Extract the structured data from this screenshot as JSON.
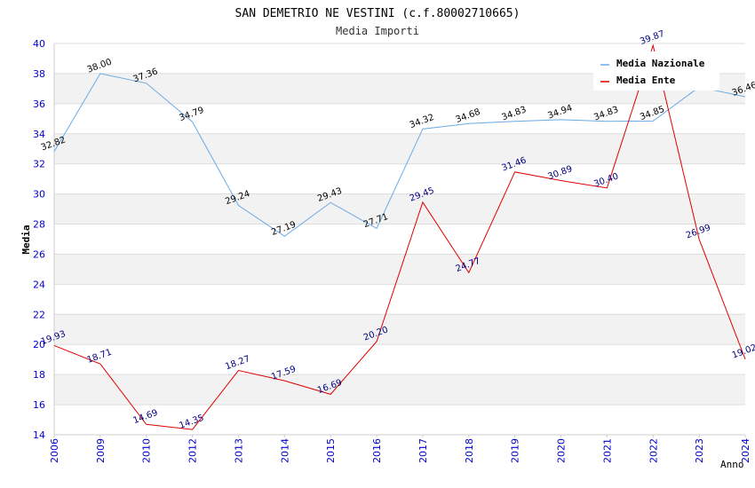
{
  "chart_data": {
    "type": "line",
    "title": "SAN DEMETRIO NE VESTINI (c.f.80002710665)",
    "subtitle": "Media Importi",
    "xlabel": "Anno",
    "ylabel": "Media",
    "ylim": [
      14,
      40
    ],
    "yticks": [
      14,
      16,
      18,
      20,
      22,
      24,
      26,
      28,
      30,
      32,
      34,
      36,
      38,
      40
    ],
    "categories": [
      "2006",
      "2009",
      "2010",
      "2012",
      "2013",
      "2014",
      "2015",
      "2016",
      "2017",
      "2018",
      "2019",
      "2020",
      "2021",
      "2022",
      "2023",
      "2024"
    ],
    "grid": "horizontal alternating bands",
    "legend_position": "top-right",
    "series": [
      {
        "name": "Media Nazionale",
        "color": "#6aaae6",
        "values": [
          32.82,
          38.0,
          37.36,
          34.79,
          29.24,
          27.19,
          29.43,
          27.71,
          34.32,
          34.68,
          34.83,
          34.94,
          34.83,
          34.85,
          37.1,
          36.46
        ],
        "labels": [
          "32.82",
          "38.00",
          "37.36",
          "34.79",
          "29.24",
          "27.19",
          "29.43",
          "27.71",
          "34.32",
          "34.68",
          "34.83",
          "34.94",
          "34.83",
          "34.85",
          "",
          "36.46"
        ]
      },
      {
        "name": "Media Ente",
        "color": "#e00000",
        "values": [
          19.93,
          18.71,
          14.69,
          14.35,
          18.27,
          17.59,
          16.69,
          20.2,
          29.45,
          24.77,
          31.46,
          30.89,
          30.4,
          39.87,
          26.99,
          19.02
        ],
        "labels": [
          "19.93",
          "18.71",
          "14.69",
          "14.35",
          "18.27",
          "17.59",
          "16.69",
          "20.20",
          "29.45",
          "24.77",
          "31.46",
          "30.89",
          "30.40",
          "39.87",
          "26.99",
          "19.02"
        ]
      }
    ]
  }
}
